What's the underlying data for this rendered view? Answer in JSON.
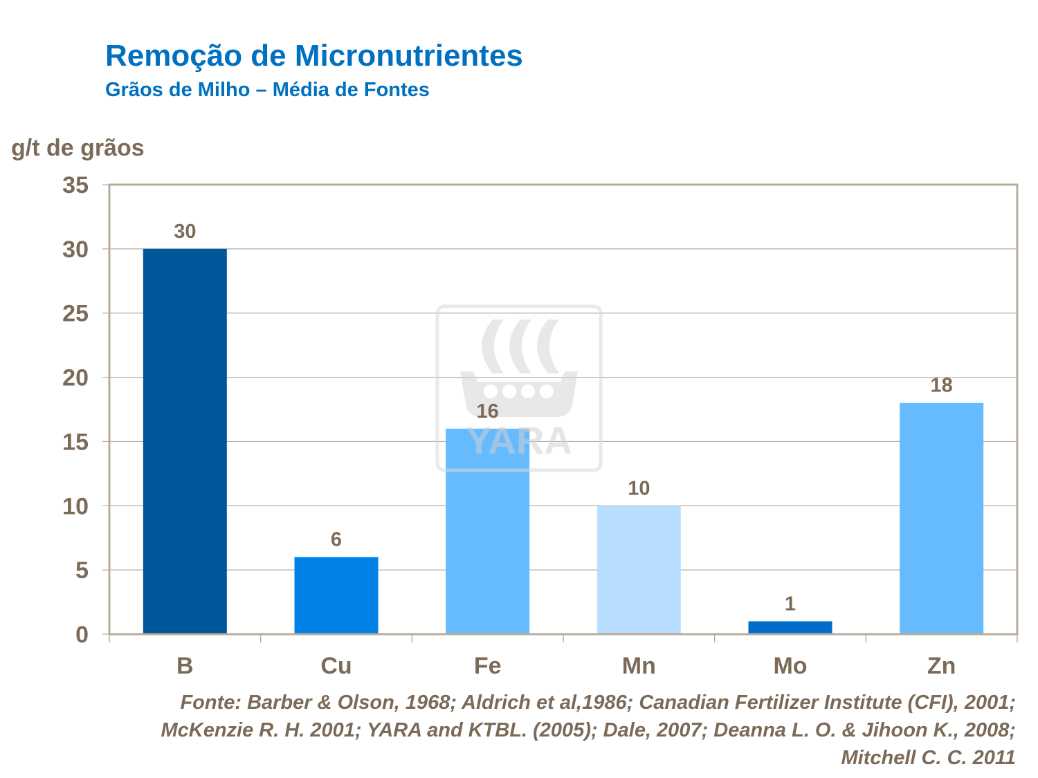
{
  "chart_data": {
    "type": "bar",
    "title": "Remoção de Micronutrientes",
    "subtitle": "Grãos de Milho – Média de Fontes",
    "ylabel": "g/t de grãos",
    "xlabel": "",
    "categories": [
      "B",
      "Cu",
      "Fe",
      "Mn",
      "Mo",
      "Zn"
    ],
    "values": [
      30,
      6,
      16,
      10,
      1,
      18
    ],
    "colors": [
      "#00589B",
      "#0082E6",
      "#66BBFF",
      "#B8DEFF",
      "#006EC8",
      "#66BBFF"
    ],
    "ylim": [
      0,
      35
    ],
    "yticks": [
      0,
      5,
      10,
      15,
      20,
      25,
      30,
      35
    ],
    "grid": true,
    "data_labels": true,
    "legend": "none"
  },
  "watermark": {
    "text": "YARA",
    "icon": "viking-ship-logo"
  },
  "source": "Fonte: Barber & Olson, 1968; Aldrich et al,1986; Canadian Fertilizer Institute (CFI), 2001;\nMcKenzie R. H. 2001; YARA and KTBL. (2005); Dale, 2007; Deanna L. O. & Jihoon K.,  2008;\nMitchell C. C. 2011",
  "colors": {
    "title": "#0070C0",
    "text": "#7B6A58",
    "grid": "#B8AC9F"
  }
}
